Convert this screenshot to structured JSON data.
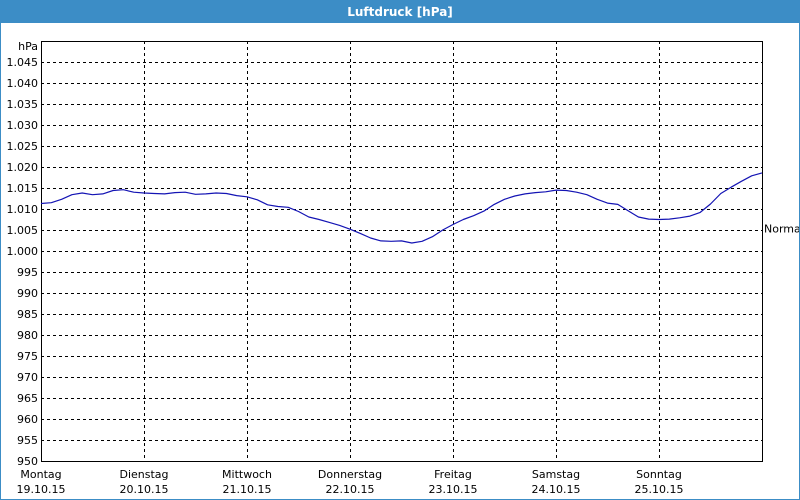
{
  "window": {
    "title": "Luftdruck [hPa]"
  },
  "chart_data": {
    "type": "line",
    "title": "Luftdruck [hPa]",
    "ylabel": "hPa",
    "xlabel": "",
    "ylim": [
      950,
      1050
    ],
    "xlim": [
      0,
      7
    ],
    "grid": true,
    "y_ticks": [
      950,
      955,
      960,
      965,
      970,
      975,
      980,
      985,
      990,
      995,
      1000,
      1005,
      1010,
      1015,
      1020,
      1025,
      1030,
      1035,
      1040,
      1045
    ],
    "y_tick_labels": [
      "950",
      "955",
      "960",
      "965",
      "970",
      "975",
      "980",
      "985",
      "990",
      "995",
      "1.000",
      "1.005",
      "1.010",
      "1.015",
      "1.020",
      "1.025",
      "1.030",
      "1.035",
      "1.040",
      "1.045"
    ],
    "x_ticks": [
      {
        "day": "Montag",
        "date": "19.10.15"
      },
      {
        "day": "Dienstag",
        "date": "20.10.15"
      },
      {
        "day": "Mittwoch",
        "date": "21.10.15"
      },
      {
        "day": "Donnerstag",
        "date": "22.10.15"
      },
      {
        "day": "Freitag",
        "date": "23.10.15"
      },
      {
        "day": "Samstag",
        "date": "24.10.15"
      },
      {
        "day": "Sonntag",
        "date": "25.10.15"
      }
    ],
    "reference_line": {
      "label": "Normal",
      "value": 1005.3
    },
    "colors": {
      "line": "#1414b4",
      "grid": "#000000"
    },
    "series": [
      {
        "values": [
          [
            0.0,
            1011.3
          ],
          [
            0.1,
            1011.5
          ],
          [
            0.2,
            1012.3
          ],
          [
            0.3,
            1013.4
          ],
          [
            0.4,
            1013.8
          ],
          [
            0.5,
            1013.4
          ],
          [
            0.6,
            1013.6
          ],
          [
            0.7,
            1014.4
          ],
          [
            0.8,
            1014.6
          ],
          [
            0.9,
            1014.0
          ],
          [
            1.0,
            1013.8
          ],
          [
            1.1,
            1013.7
          ],
          [
            1.2,
            1013.6
          ],
          [
            1.3,
            1013.9
          ],
          [
            1.4,
            1014.0
          ],
          [
            1.5,
            1013.5
          ],
          [
            1.6,
            1013.6
          ],
          [
            1.7,
            1013.8
          ],
          [
            1.8,
            1013.7
          ],
          [
            1.9,
            1013.2
          ],
          [
            2.0,
            1012.9
          ],
          [
            2.1,
            1012.2
          ],
          [
            2.2,
            1011.0
          ],
          [
            2.3,
            1010.6
          ],
          [
            2.4,
            1010.4
          ],
          [
            2.5,
            1009.4
          ],
          [
            2.6,
            1008.1
          ],
          [
            2.7,
            1007.5
          ],
          [
            2.8,
            1006.8
          ],
          [
            2.9,
            1006.1
          ],
          [
            3.0,
            1005.2
          ],
          [
            3.1,
            1004.2
          ],
          [
            3.2,
            1003.1
          ],
          [
            3.3,
            1002.4
          ],
          [
            3.4,
            1002.3
          ],
          [
            3.5,
            1002.4
          ],
          [
            3.6,
            1001.9
          ],
          [
            3.7,
            1002.3
          ],
          [
            3.8,
            1003.4
          ],
          [
            3.9,
            1005.0
          ],
          [
            4.0,
            1006.3
          ],
          [
            4.1,
            1007.5
          ],
          [
            4.2,
            1008.4
          ],
          [
            4.3,
            1009.5
          ],
          [
            4.4,
            1011.1
          ],
          [
            4.5,
            1012.3
          ],
          [
            4.6,
            1013.1
          ],
          [
            4.7,
            1013.6
          ],
          [
            4.8,
            1013.9
          ],
          [
            4.9,
            1014.1
          ],
          [
            5.0,
            1014.5
          ],
          [
            5.1,
            1014.4
          ],
          [
            5.2,
            1014.0
          ],
          [
            5.3,
            1013.4
          ],
          [
            5.4,
            1012.3
          ],
          [
            5.5,
            1011.4
          ],
          [
            5.6,
            1011.1
          ],
          [
            5.7,
            1009.6
          ],
          [
            5.8,
            1008.1
          ],
          [
            5.9,
            1007.6
          ],
          [
            6.0,
            1007.5
          ],
          [
            6.1,
            1007.6
          ],
          [
            6.2,
            1007.9
          ],
          [
            6.3,
            1008.3
          ],
          [
            6.4,
            1009.2
          ],
          [
            6.5,
            1011.2
          ],
          [
            6.6,
            1013.7
          ],
          [
            6.7,
            1015.2
          ],
          [
            6.8,
            1016.6
          ],
          [
            6.9,
            1017.9
          ],
          [
            7.0,
            1018.6
          ]
        ]
      }
    ]
  }
}
